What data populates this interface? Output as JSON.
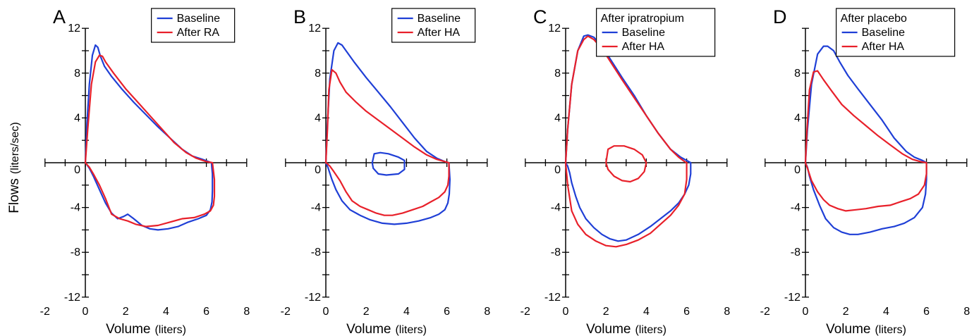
{
  "figure": {
    "ylabel_main": "Flows",
    "ylabel_unit": "(liters/sec)"
  },
  "chart_data": [
    {
      "type": "line",
      "panel": "A",
      "xlabel_main": "Volume",
      "xlabel_unit": "(liters)",
      "xlim": [
        -2,
        8
      ],
      "ylim": [
        -12,
        12
      ],
      "x_ticks": [
        -2,
        0,
        2,
        4,
        6,
        8
      ],
      "y_ticks": [
        -12,
        -8,
        -4,
        0,
        4,
        8,
        12
      ],
      "legend": {
        "title": "",
        "position": "top-right"
      },
      "series": [
        {
          "name": "Baseline",
          "color": "#1f3fd6",
          "x": [
            0.0,
            0.08,
            0.2,
            0.35,
            0.5,
            0.62,
            0.75,
            0.95,
            1.3,
            1.8,
            2.4,
            3.0,
            3.6,
            4.2,
            4.8,
            5.3,
            5.8,
            6.1,
            6.25,
            6.3,
            6.3,
            6.28,
            6.2,
            6.0,
            5.6,
            5.1,
            4.6,
            4.1,
            3.6,
            3.2,
            2.8,
            2.4,
            2.1,
            1.9,
            1.6,
            1.3,
            1.0,
            0.7,
            0.4,
            0.2,
            0.05,
            0.0
          ],
          "y": [
            0.0,
            3.5,
            7.0,
            9.6,
            10.5,
            10.3,
            9.5,
            8.6,
            7.7,
            6.6,
            5.4,
            4.3,
            3.2,
            2.2,
            1.2,
            0.6,
            0.3,
            0.1,
            0.0,
            -1.0,
            -2.5,
            -3.5,
            -4.2,
            -4.7,
            -5.0,
            -5.3,
            -5.7,
            -5.9,
            -6.0,
            -5.9,
            -5.6,
            -5.0,
            -4.6,
            -4.8,
            -5.0,
            -4.5,
            -3.6,
            -2.4,
            -1.2,
            -0.5,
            -0.1,
            0.0
          ]
        },
        {
          "name": "After RA",
          "color": "#e8202a",
          "x": [
            0.0,
            0.12,
            0.3,
            0.5,
            0.7,
            0.85,
            1.0,
            1.4,
            2.0,
            2.6,
            3.2,
            3.8,
            4.4,
            5.0,
            5.5,
            6.0,
            6.3,
            6.4,
            6.4,
            6.35,
            6.2,
            5.9,
            5.4,
            4.8,
            4.2,
            3.6,
            3.0,
            2.5,
            2.1,
            1.7,
            1.3,
            1.0,
            0.7,
            0.4,
            0.2,
            0.05,
            0.0
          ],
          "y": [
            0.0,
            3.0,
            7.0,
            9.0,
            9.6,
            9.5,
            9.0,
            8.0,
            6.6,
            5.4,
            4.2,
            3.0,
            1.8,
            0.9,
            0.4,
            0.1,
            0.0,
            -1.5,
            -3.0,
            -3.8,
            -4.3,
            -4.6,
            -4.9,
            -5.0,
            -5.3,
            -5.6,
            -5.7,
            -5.5,
            -5.2,
            -5.0,
            -4.6,
            -3.2,
            -2.0,
            -1.0,
            -0.4,
            -0.1,
            0.0
          ]
        }
      ]
    },
    {
      "type": "line",
      "panel": "B",
      "xlabel_main": "Volume",
      "xlabel_unit": "(liters)",
      "xlim": [
        -2,
        8
      ],
      "ylim": [
        -12,
        12
      ],
      "x_ticks": [
        -2,
        0,
        2,
        4,
        6,
        8
      ],
      "y_ticks": [
        -12,
        -8,
        -4,
        0,
        4,
        8,
        12
      ],
      "legend": {
        "title": "",
        "position": "top-right"
      },
      "series": [
        {
          "name": "Baseline",
          "color": "#1f3fd6",
          "x": [
            0.0,
            0.08,
            0.2,
            0.4,
            0.6,
            0.8,
            1.0,
            1.4,
            2.0,
            2.6,
            3.2,
            3.8,
            4.4,
            5.0,
            5.5,
            5.9,
            6.1,
            6.15,
            6.12,
            6.05,
            5.9,
            5.6,
            5.2,
            4.6,
            4.0,
            3.4,
            2.8,
            2.2,
            1.7,
            1.2,
            0.8,
            0.5,
            0.3,
            0.1,
            0.0
          ],
          "y": [
            0.0,
            3.5,
            7.5,
            10.0,
            10.7,
            10.5,
            10.0,
            9.0,
            7.6,
            6.3,
            5.0,
            3.6,
            2.2,
            1.0,
            0.4,
            0.1,
            0.0,
            -1.5,
            -2.8,
            -3.6,
            -4.2,
            -4.6,
            -4.9,
            -5.2,
            -5.4,
            -5.5,
            -5.4,
            -5.1,
            -4.7,
            -4.2,
            -3.4,
            -2.4,
            -1.5,
            -0.4,
            0.0
          ]
        },
        {
          "name": "After HA",
          "color": "#e8202a",
          "x": [
            0.0,
            0.08,
            0.15,
            0.3,
            0.5,
            0.7,
            1.0,
            1.5,
            2.0,
            2.6,
            3.2,
            3.8,
            4.4,
            5.0,
            5.5,
            5.9,
            6.1,
            6.1,
            6.05,
            5.9,
            5.6,
            5.2,
            4.8,
            4.3,
            3.8,
            3.3,
            2.9,
            2.5,
            2.1,
            1.7,
            1.3,
            1.0,
            0.7,
            0.4,
            0.2,
            0.05,
            0.0
          ],
          "y": [
            0.0,
            3.0,
            6.5,
            8.3,
            8.0,
            7.2,
            6.3,
            5.4,
            4.6,
            3.8,
            3.0,
            2.2,
            1.4,
            0.7,
            0.3,
            0.1,
            0.0,
            -1.2,
            -2.0,
            -2.6,
            -3.1,
            -3.5,
            -3.9,
            -4.2,
            -4.5,
            -4.7,
            -4.7,
            -4.5,
            -4.2,
            -3.9,
            -3.4,
            -2.6,
            -1.6,
            -0.8,
            -0.3,
            -0.05,
            0.0
          ]
        },
        {
          "name": "",
          "color": "#1f3fd6",
          "x": [
            2.3,
            2.4,
            2.7,
            3.1,
            3.6,
            3.9,
            3.9,
            3.6,
            3.0,
            2.6,
            2.35,
            2.3
          ],
          "y": [
            0.0,
            0.8,
            0.9,
            0.8,
            0.5,
            0.2,
            -0.6,
            -1.0,
            -1.1,
            -1.0,
            -0.5,
            0.0
          ]
        }
      ]
    },
    {
      "type": "line",
      "panel": "C",
      "xlabel_main": "Volume",
      "xlabel_unit": "(liters)",
      "xlim": [
        -2,
        8
      ],
      "ylim": [
        -12,
        12
      ],
      "x_ticks": [
        -2,
        0,
        2,
        4,
        6,
        8
      ],
      "y_ticks": [
        -12,
        -8,
        -4,
        0,
        4,
        8,
        12
      ],
      "legend": {
        "title": "After ipratropium",
        "position": "top-right"
      },
      "series": [
        {
          "name": "Baseline",
          "color": "#1f3fd6",
          "x": [
            0.0,
            0.1,
            0.3,
            0.6,
            0.9,
            1.1,
            1.4,
            1.8,
            2.3,
            2.8,
            3.4,
            4.0,
            4.6,
            5.2,
            5.7,
            6.0,
            6.2,
            6.2,
            6.1,
            5.9,
            5.6,
            5.2,
            4.7,
            4.2,
            3.6,
            3.0,
            2.6,
            2.2,
            1.8,
            1.4,
            1.0,
            0.7,
            0.5,
            0.3,
            0.2,
            0.1,
            0.0
          ],
          "y": [
            0.0,
            3.0,
            7.0,
            10.0,
            11.3,
            11.4,
            11.2,
            10.4,
            9.0,
            7.6,
            6.0,
            4.2,
            2.6,
            1.2,
            0.5,
            0.2,
            0.0,
            -1.0,
            -2.0,
            -2.8,
            -3.6,
            -4.3,
            -5.0,
            -5.7,
            -6.4,
            -6.9,
            -7.0,
            -6.8,
            -6.4,
            -5.8,
            -5.0,
            -4.0,
            -3.0,
            -1.8,
            -0.9,
            -0.3,
            0.0
          ]
        },
        {
          "name": "After HA",
          "color": "#e8202a",
          "x": [
            0.0,
            0.1,
            0.3,
            0.6,
            0.9,
            1.1,
            1.4,
            1.8,
            2.3,
            2.8,
            3.4,
            4.0,
            4.6,
            5.2,
            5.6,
            5.9,
            6.0,
            6.0,
            5.9,
            5.6,
            5.2,
            4.7,
            4.2,
            3.6,
            3.0,
            2.5,
            2.0,
            1.5,
            1.0,
            0.6,
            0.3,
            0.1,
            0.0
          ],
          "y": [
            0.0,
            3.0,
            7.0,
            10.0,
            11.0,
            11.3,
            11.0,
            10.2,
            8.8,
            7.4,
            5.8,
            4.2,
            2.6,
            1.2,
            0.5,
            0.1,
            0.0,
            -1.5,
            -2.8,
            -3.8,
            -4.7,
            -5.5,
            -6.3,
            -6.9,
            -7.3,
            -7.5,
            -7.4,
            -7.0,
            -6.4,
            -5.5,
            -4.3,
            -2.0,
            0.0
          ]
        },
        {
          "name": "",
          "color": "#e8202a",
          "x": [
            2.0,
            2.1,
            2.4,
            2.9,
            3.4,
            3.8,
            4.0,
            3.9,
            3.6,
            3.2,
            2.8,
            2.4,
            2.1,
            2.0
          ],
          "y": [
            0.0,
            1.2,
            1.5,
            1.5,
            1.2,
            0.7,
            0.0,
            -0.8,
            -1.4,
            -1.7,
            -1.6,
            -1.2,
            -0.6,
            0.0
          ]
        }
      ]
    },
    {
      "type": "line",
      "panel": "D",
      "xlabel_main": "Volume",
      "xlabel_unit": "(liters)",
      "xlim": [
        -2,
        8
      ],
      "ylim": [
        -12,
        12
      ],
      "x_ticks": [
        -2,
        0,
        2,
        4,
        6,
        8
      ],
      "y_ticks": [
        -12,
        -8,
        -4,
        0,
        4,
        8
      ],
      "legend": {
        "title": "After placebo",
        "position": "top-right"
      },
      "series": [
        {
          "name": "Baseline",
          "color": "#1f3fd6",
          "x": [
            0.0,
            0.1,
            0.3,
            0.6,
            0.9,
            1.1,
            1.4,
            1.7,
            2.1,
            2.6,
            3.2,
            3.8,
            4.4,
            5.0,
            5.4,
            5.8,
            6.0,
            6.0,
            5.95,
            5.8,
            5.4,
            4.9,
            4.4,
            3.8,
            3.2,
            2.6,
            2.2,
            1.8,
            1.4,
            1.0,
            0.7,
            0.4,
            0.2,
            0.1,
            0.0
          ],
          "y": [
            0.0,
            3.0,
            7.0,
            9.7,
            10.4,
            10.4,
            10.0,
            9.0,
            7.8,
            6.6,
            5.2,
            3.8,
            2.2,
            1.0,
            0.5,
            0.2,
            0.0,
            -1.5,
            -2.8,
            -4.0,
            -4.9,
            -5.4,
            -5.7,
            -5.9,
            -6.2,
            -6.4,
            -6.4,
            -6.2,
            -5.8,
            -5.0,
            -3.8,
            -2.4,
            -1.2,
            -0.4,
            0.0
          ]
        },
        {
          "name": "After HA",
          "color": "#e8202a",
          "x": [
            0.0,
            0.08,
            0.2,
            0.4,
            0.6,
            0.9,
            1.3,
            1.8,
            2.4,
            3.0,
            3.6,
            4.2,
            4.8,
            5.3,
            5.7,
            6.0,
            6.0,
            5.9,
            5.6,
            5.2,
            4.7,
            4.2,
            3.6,
            3.0,
            2.5,
            2.0,
            1.6,
            1.2,
            0.9,
            0.6,
            0.3,
            0.1,
            0.0
          ],
          "y": [
            0.0,
            3.0,
            6.5,
            8.1,
            8.2,
            7.4,
            6.4,
            5.2,
            4.2,
            3.3,
            2.4,
            1.6,
            0.8,
            0.3,
            0.1,
            0.0,
            -1.0,
            -2.0,
            -2.8,
            -3.2,
            -3.5,
            -3.8,
            -3.9,
            -4.1,
            -4.2,
            -4.3,
            -4.1,
            -3.8,
            -3.3,
            -2.6,
            -1.6,
            -0.5,
            0.0
          ]
        }
      ]
    }
  ]
}
